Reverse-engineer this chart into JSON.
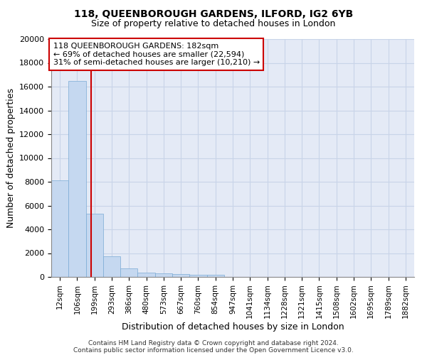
{
  "title1": "118, QUEENBOROUGH GARDENS, ILFORD, IG2 6YB",
  "title2": "Size of property relative to detached houses in London",
  "xlabel": "Distribution of detached houses by size in London",
  "ylabel": "Number of detached properties",
  "bar_color": "#c5d8f0",
  "bar_edge_color": "#7aaad4",
  "categories": [
    "12sqm",
    "106sqm",
    "199sqm",
    "293sqm",
    "386sqm",
    "480sqm",
    "573sqm",
    "667sqm",
    "760sqm",
    "854sqm",
    "947sqm",
    "1041sqm",
    "1134sqm",
    "1228sqm",
    "1321sqm",
    "1415sqm",
    "1508sqm",
    "1602sqm",
    "1695sqm",
    "1789sqm",
    "1882sqm"
  ],
  "values": [
    8100,
    16500,
    5300,
    1750,
    720,
    350,
    280,
    220,
    190,
    200,
    0,
    0,
    0,
    0,
    0,
    0,
    0,
    0,
    0,
    0,
    0
  ],
  "ylim": [
    0,
    20000
  ],
  "yticks": [
    0,
    2000,
    4000,
    6000,
    8000,
    10000,
    12000,
    14000,
    16000,
    18000,
    20000
  ],
  "vline_color": "#cc0000",
  "annotation_text": "118 QUEENBOROUGH GARDENS: 182sqm\n← 69% of detached houses are smaller (22,594)\n31% of semi-detached houses are larger (10,210) →",
  "annotation_box_color": "#cc0000",
  "grid_color": "#c8d4e8",
  "bg_color": "#e4eaf6",
  "footer1": "Contains HM Land Registry data © Crown copyright and database right 2024.",
  "footer2": "Contains public sector information licensed under the Open Government Licence v3.0."
}
